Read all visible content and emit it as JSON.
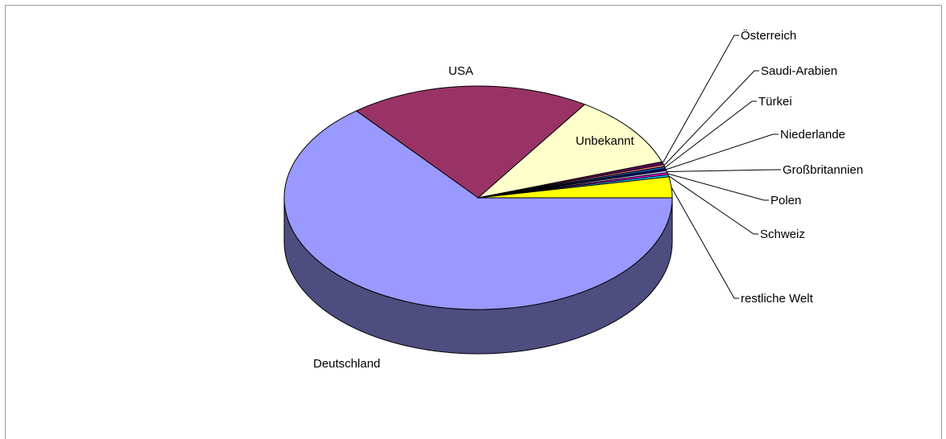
{
  "chart_data": {
    "type": "pie",
    "title": "",
    "three_d": true,
    "slices": [
      {
        "label": "Deutschland",
        "value": 64.0,
        "color": "#9999ff"
      },
      {
        "label": "USA",
        "value": 20.0,
        "color": "#993366"
      },
      {
        "label": "Unbekannt",
        "value": 10.5,
        "color": "#ffffcc"
      },
      {
        "label": "Österreich",
        "value": 0.4,
        "color": "#660066"
      },
      {
        "label": "Saudi-Arabien",
        "value": 0.3,
        "color": "#ff8080"
      },
      {
        "label": "Türkei",
        "value": 0.3,
        "color": "#0066cc"
      },
      {
        "label": "Niederlande",
        "value": 0.3,
        "color": "#000080"
      },
      {
        "label": "Großbritannien",
        "value": 0.3,
        "color": "#ccccff"
      },
      {
        "label": "Polen",
        "value": 0.3,
        "color": "#ff00ff"
      },
      {
        "label": "Schweiz",
        "value": 0.3,
        "color": "#00ccff"
      },
      {
        "label": "restliche Welt",
        "value": 3.0,
        "color": "#ffff00"
      }
    ],
    "legend": "none"
  }
}
